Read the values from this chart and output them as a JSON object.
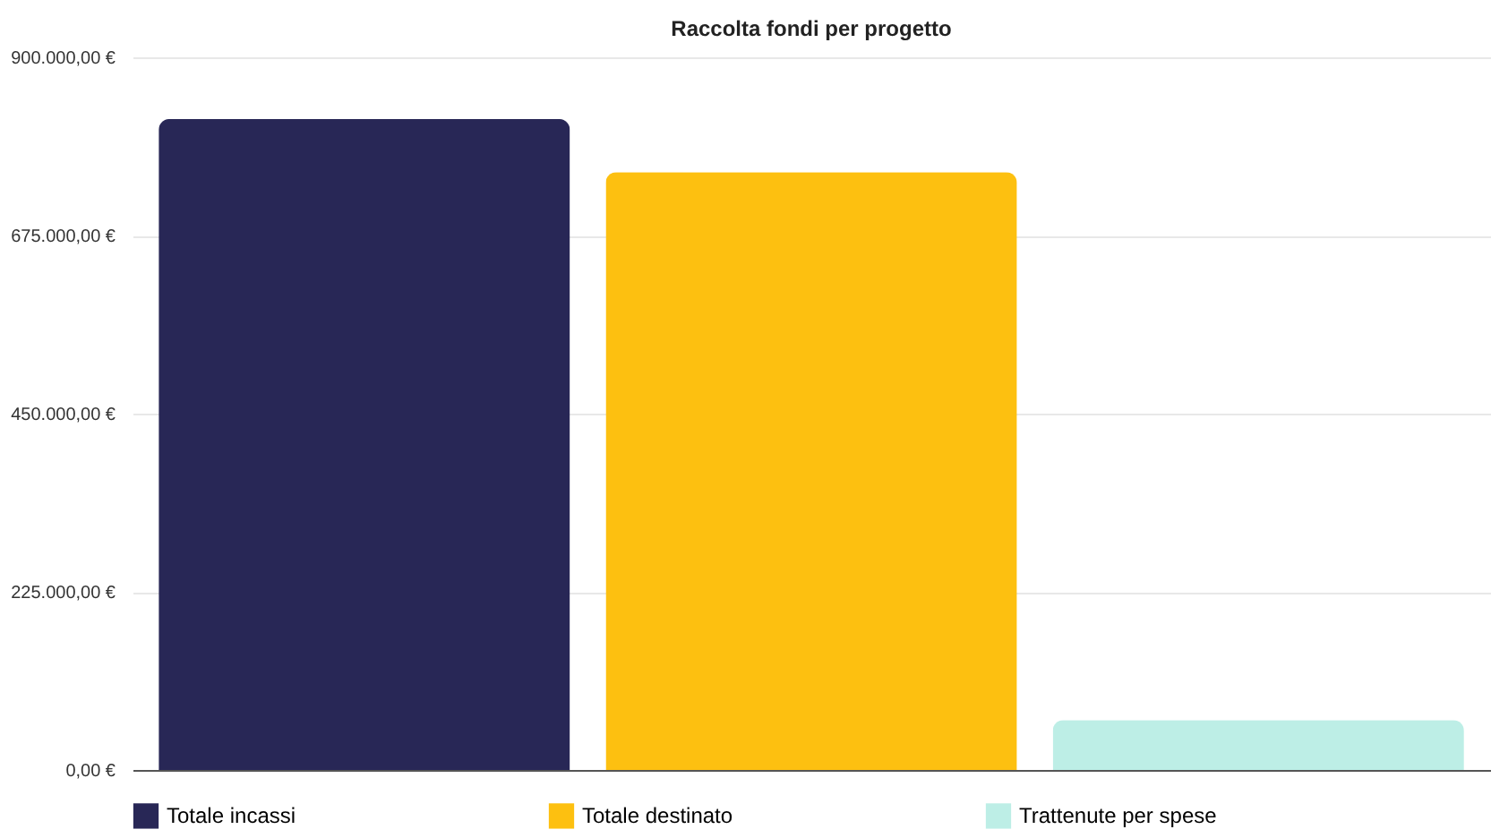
{
  "chart_data": {
    "type": "bar",
    "title": "Raccolta fondi per progetto",
    "categories": [
      null
    ],
    "series": [
      {
        "name": "Totale incassi",
        "color": "#282756",
        "values": [
          822000
        ]
      },
      {
        "name": "Totale destinato",
        "color": "#fdc010",
        "values": [
          755000
        ]
      },
      {
        "name": "Trattenute per spese",
        "color": "#bdeee6",
        "values": [
          63000
        ]
      }
    ],
    "ylim": [
      0,
      900000
    ],
    "yticks": [
      {
        "value": 0,
        "label": "0,00 €"
      },
      {
        "value": 225000,
        "label": "225.000,00 €"
      },
      {
        "value": 450000,
        "label": "450.000,00 €"
      },
      {
        "value": 675000,
        "label": "675.000,00 €"
      },
      {
        "value": 900000,
        "label": "900.000,00 €"
      }
    ],
    "grid": "y",
    "legend": "bottom"
  }
}
